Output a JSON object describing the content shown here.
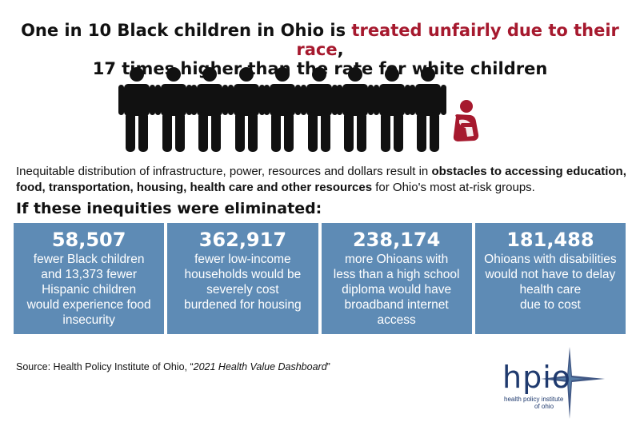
{
  "title": {
    "line1_prefix": "One in 10 Black children in Ohio is ",
    "line1_highlight": "treated unfairly due to their race",
    "line1_suffix": ",",
    "line2": "17 times higher than the rate for white children"
  },
  "colors": {
    "highlight": "#a6192e",
    "card": "#5e8bb5",
    "logo": "#1f3a6e"
  },
  "figures": {
    "standing_count": 9,
    "highlighted_count": 1,
    "icon": "person-icon",
    "highlighted_icon": "crouching-child-icon"
  },
  "paragraph": {
    "part1": "Inequitable distribution of infrastructure, power, resources and dollars result in ",
    "bold": "obstacles to accessing education, food, transportation, housing, health care and other resources",
    "part2": " for Ohio's most at-risk groups."
  },
  "subheading": "If these inequities were eliminated:",
  "cards": [
    {
      "number": "58,507",
      "description": "fewer Black children\nand 13,373 fewer\nHispanic children\nwould experience food\ninsecurity"
    },
    {
      "number": "362,917",
      "description": "fewer low-income\nhouseholds would be\nseverely cost\nburdened for housing"
    },
    {
      "number": "238,174",
      "description": "more Ohioans with\nless than a high school\ndiploma would have\nbroadband internet\naccess"
    },
    {
      "number": "181,488",
      "description": "Ohioans with disabilities\nwould not have to delay\nhealth care\ndue to cost"
    }
  ],
  "source": {
    "prefix": "Source: Health Policy Institute of Ohio, “",
    "title": "2021 Health Value Dashboard",
    "suffix": "”"
  },
  "logo": {
    "word": "hpio",
    "tagline1": "health policy institute",
    "tagline2": "of ohio"
  }
}
